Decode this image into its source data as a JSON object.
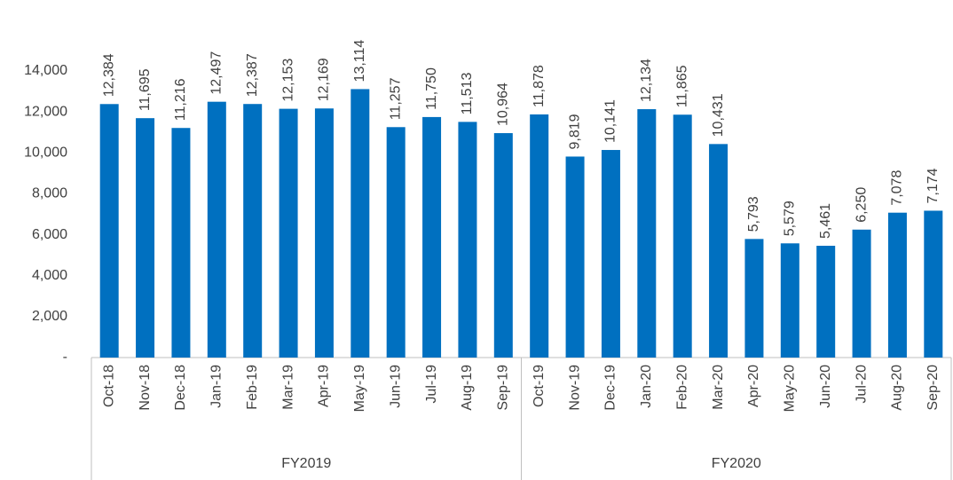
{
  "chart_data": {
    "type": "bar",
    "categories": [
      "Oct-18",
      "Nov-18",
      "Dec-18",
      "Jan-19",
      "Feb-19",
      "Mar-19",
      "Apr-19",
      "May-19",
      "Jun-19",
      "Jul-19",
      "Aug-19",
      "Sep-19",
      "Oct-19",
      "Nov-19",
      "Dec-19",
      "Jan-20",
      "Feb-20",
      "Mar-20",
      "Apr-20",
      "May-20",
      "Jun-20",
      "Jul-20",
      "Aug-20",
      "Sep-20"
    ],
    "groups": [
      "FY2019",
      "FY2020"
    ],
    "values": [
      12384,
      11695,
      11216,
      12497,
      12387,
      12153,
      12169,
      13114,
      11257,
      11750,
      11513,
      10964,
      11878,
      9819,
      10141,
      12134,
      11865,
      10431,
      5793,
      5579,
      5461,
      6250,
      7078,
      7174
    ],
    "value_labels": [
      "12,384",
      "11,695",
      "11,216",
      "12,497",
      "12,387",
      "12,153",
      "12,169",
      "13,114",
      "11,257",
      "11,750",
      "11,513",
      "10,964",
      "11,878",
      "9,819",
      "10,141",
      "12,134",
      "11,865",
      "10,431",
      "5,793",
      "5,579",
      "5,461",
      "6,250",
      "7,078",
      "7,174"
    ],
    "color": "#0070c0",
    "ylim": [
      0,
      14000
    ],
    "yticks": [
      {
        "value": 0,
        "label": "-"
      },
      {
        "value": 2000,
        "label": "2,000"
      },
      {
        "value": 4000,
        "label": "4,000"
      },
      {
        "value": 6000,
        "label": "6,000"
      },
      {
        "value": 8000,
        "label": "8,000"
      },
      {
        "value": 10000,
        "label": "10,000"
      },
      {
        "value": 12000,
        "label": "12,000"
      },
      {
        "value": 14000,
        "label": "14,000"
      }
    ],
    "grid": false
  }
}
